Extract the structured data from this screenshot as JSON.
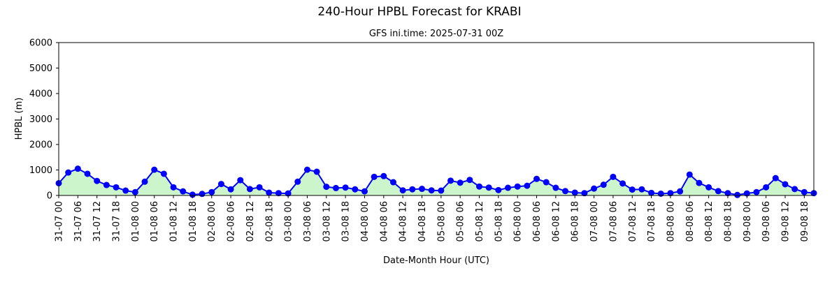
{
  "chart_data": {
    "type": "area",
    "title": "240-Hour HPBL Forecast for KRABI",
    "subtitle": "GFS ini.time: 2025-07-31 00Z",
    "xlabel": "Date-Month Hour (UTC)",
    "ylabel": "HPBL (m)",
    "ylim": [
      0,
      6000
    ],
    "yticks": [
      0,
      1000,
      2000,
      3000,
      4000,
      5000,
      6000
    ],
    "xlim_hours": [
      0,
      237
    ],
    "x_step_hours": 3,
    "xtick_step_hours": 6,
    "xtick_labels": [
      "31-07 00",
      "31-07 06",
      "31-07 12",
      "31-07 18",
      "01-08 00",
      "01-08 06",
      "01-08 12",
      "01-08 18",
      "02-08 00",
      "02-08 06",
      "02-08 12",
      "02-08 18",
      "03-08 00",
      "03-08 06",
      "03-08 12",
      "03-08 18",
      "04-08 00",
      "04-08 06",
      "04-08 12",
      "04-08 18",
      "05-08 00",
      "05-08 06",
      "05-08 12",
      "05-08 18",
      "06-08 00",
      "06-08 06",
      "06-08 12",
      "06-08 18",
      "07-08 00",
      "07-08 06",
      "07-08 12",
      "07-08 18",
      "08-08 00",
      "08-08 06",
      "08-08 12",
      "08-08 18",
      "09-08 00",
      "09-08 06",
      "09-08 12",
      "09-08 18"
    ],
    "values": [
      480,
      900,
      1050,
      850,
      570,
      410,
      320,
      190,
      130,
      540,
      1010,
      850,
      320,
      160,
      30,
      60,
      130,
      450,
      240,
      600,
      250,
      320,
      110,
      90,
      80,
      540,
      1010,
      930,
      340,
      290,
      310,
      240,
      160,
      730,
      760,
      520,
      200,
      240,
      260,
      200,
      190,
      580,
      500,
      610,
      350,
      310,
      210,
      300,
      350,
      380,
      650,
      520,
      300,
      170,
      110,
      90,
      270,
      420,
      730,
      470,
      230,
      240,
      100,
      70,
      90,
      160,
      820,
      490,
      320,
      170,
      90,
      20,
      80,
      130,
      320,
      680,
      440,
      250,
      130,
      90
    ],
    "grid": false,
    "line_color": "#0000ff",
    "marker_color": "#0000ff",
    "fill_color": "#ccf5cc"
  }
}
